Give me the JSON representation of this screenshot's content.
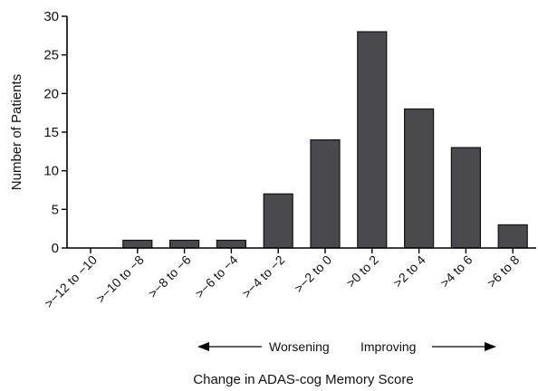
{
  "chart_data": {
    "type": "bar",
    "title": "",
    "xlabel": "Change in ADAS-cog Memory Score",
    "ylabel": "Number of Patients",
    "categories": [
      ">−12 to −10",
      ">−10 to −8",
      ">−8 to −6",
      ">−6 to −4",
      ">−4 to −2",
      ">−2 to 0",
      ">0 to 2",
      ">2 to 4",
      ">4 to 6",
      ">6 to 8"
    ],
    "values": [
      0,
      1,
      1,
      1,
      7,
      14,
      28,
      18,
      13,
      3
    ],
    "ylim": [
      0,
      30
    ],
    "yticks": [
      0,
      5,
      10,
      15,
      20,
      25,
      30
    ],
    "grid": false,
    "annotations": {
      "left": "Worsening",
      "right": "Improving"
    }
  }
}
